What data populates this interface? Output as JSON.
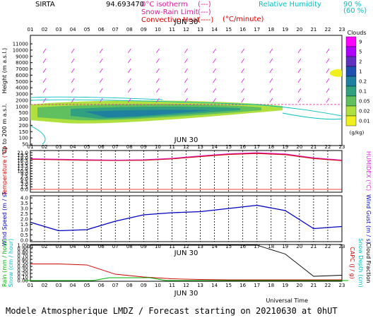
{
  "header": {
    "station": "SIRTA",
    "coords": "94.693470",
    "legend_left": [
      {
        "label": "0°C isotherm",
        "style": "(---)",
        "color": "#e0189a"
      },
      {
        "label": "Snow-Rain Limit",
        "style": "(---)",
        "color": "#e0189a"
      },
      {
        "label": "Convective Heat",
        "style": "(----)",
        "color": "#e00000"
      }
    ],
    "convective_unit": "(°C/minute)",
    "legend_right": {
      "label": "Relative Humidity",
      "levels": [
        {
          "value": "90 %",
          "color": "#00c0c0"
        },
        {
          "value": "(60 %)",
          "color": "#00c0c0"
        }
      ]
    }
  },
  "date_label": "JUN 30",
  "hours": [
    "01",
    "02",
    "03",
    "04",
    "05",
    "06",
    "07",
    "08",
    "09",
    "10",
    "11",
    "12",
    "13",
    "14",
    "15",
    "16",
    "17",
    "18",
    "19",
    "20",
    "21",
    "22",
    "23"
  ],
  "colors": {
    "temperature": "#d00000",
    "humidex": "#e030e0",
    "wind": "#0000c0",
    "rain": "#00b000",
    "snow": "#00c0c0",
    "capc": "#d00000",
    "cloud_fraction": "#000000",
    "isotherm": "#e0189a"
  },
  "clouds_legend": {
    "title": "Clouds",
    "unit": "(g/kg)",
    "levels": [
      "9",
      "5",
      "2",
      "1",
      "0.2",
      "0.1",
      "0.05",
      "0.02",
      "0.01"
    ],
    "colors": [
      "#ff00ff",
      "#b000ff",
      "#6030c0",
      "#2050b0",
      "#2080a0",
      "#30a080",
      "#60c060",
      "#b0e040",
      "#f0f020"
    ]
  },
  "chart_data": [
    {
      "type": "heatmap",
      "name": "vertical_profile",
      "ylabel": "Height (m a.s.l.)",
      "ylabel2": "Up to 200 m a.s.l.",
      "yticks": [
        "11000",
        "10000",
        "9000",
        "8000",
        "7000",
        "6000",
        "5000",
        "4000",
        "3000",
        "2000",
        "1000",
        "500",
        "300",
        "200",
        "150",
        "100",
        "50"
      ],
      "isotherm_height_m": 2800,
      "cloud_layers": [
        {
          "from_hour": 1,
          "to_hour": 19,
          "base_m": 600,
          "top_m": 2400,
          "max_gkg": 0.1
        },
        {
          "from_hour": 22,
          "to_hour": 23,
          "base_m": 6400,
          "top_m": 7200,
          "max_gkg": 0.01
        }
      ]
    },
    {
      "type": "line",
      "name": "temperature",
      "ylabel": "Temperature (°C)",
      "ylabel2": "HUMIDEX (°C)",
      "yticks": [
        "21.0",
        "19.5",
        "18.0",
        "16.5",
        "15.0",
        "13.5",
        "12.0",
        "10.5",
        "9.0",
        "7.5",
        "6.0",
        "4.5",
        "3.0",
        "1.5",
        "0.0"
      ],
      "ylim": [
        0,
        21
      ],
      "x": [
        1,
        3,
        5,
        7,
        9,
        11,
        13,
        15,
        17,
        19,
        21,
        23
      ],
      "series": [
        {
          "name": "Temperature",
          "values": [
            17.3,
            17.0,
            16.7,
            16.6,
            16.7,
            17.5,
            18.8,
            20.0,
            20.6,
            19.9,
            17.7,
            16.5
          ]
        },
        {
          "name": "HUMIDEX",
          "values": [
            17.6,
            17.3,
            17.0,
            16.8,
            17.0,
            17.8,
            19.2,
            20.4,
            21.0,
            20.3,
            18.1,
            16.8
          ]
        }
      ]
    },
    {
      "type": "line",
      "name": "wind",
      "ylabel": "Wind Speed (m / s)",
      "ylabel2": "Wind Gust (m / s)",
      "yticks": [
        "4.0",
        "3.5",
        "3.0",
        "2.5",
        "2.0",
        "1.5",
        "1.0",
        "0.5",
        "0.0"
      ],
      "ylim": [
        0,
        4
      ],
      "x": [
        1,
        3,
        5,
        7,
        9,
        11,
        13,
        15,
        17,
        19,
        21,
        23
      ],
      "series": [
        {
          "name": "Wind Speed",
          "values": [
            1.7,
            0.9,
            1.0,
            1.8,
            2.4,
            2.6,
            2.7,
            3.0,
            3.3,
            2.8,
            1.1,
            1.3
          ]
        }
      ]
    },
    {
      "type": "line",
      "name": "precipitation",
      "ylabel": "Rain (mm / hour)",
      "ylabel2": "Snow (cm / hour)",
      "ylabel3": "CAPC (J / g)",
      "ylabel4": "Snow Depth (cm)",
      "ylabel5": "Cloud Fraction",
      "yticks": [
        "1.00",
        "0.90",
        "0.80",
        "0.70",
        "0.60",
        "0.50",
        "0.40",
        "0.30",
        "0.20",
        "0.10",
        "0.00"
      ],
      "ylim": [
        0,
        1
      ],
      "x": [
        1,
        3,
        5,
        7,
        9,
        11,
        13,
        15,
        17,
        19,
        21,
        23
      ],
      "series": [
        {
          "name": "Cloud Fraction",
          "values": [
            1.0,
            1.0,
            1.0,
            1.0,
            1.0,
            1.0,
            1.0,
            1.0,
            1.0,
            0.75,
            0.12,
            0.15
          ]
        },
        {
          "name": "CAPC",
          "values": [
            0.47,
            0.47,
            0.44,
            0.18,
            0.1,
            0.05,
            0.03,
            0.02,
            0.02,
            0.02,
            0.02,
            0.02
          ]
        },
        {
          "name": "Rain",
          "values": [
            0.0,
            0.0,
            0.0,
            0.08,
            0.08,
            0.0,
            0.0,
            0.0,
            0.0,
            0.0,
            0.0,
            0.0
          ]
        }
      ],
      "xlabel": "Universal Time"
    }
  ],
  "footer": "Modele Atmospherique LMDZ / Forecast starting on 20210630 at 0hUT"
}
